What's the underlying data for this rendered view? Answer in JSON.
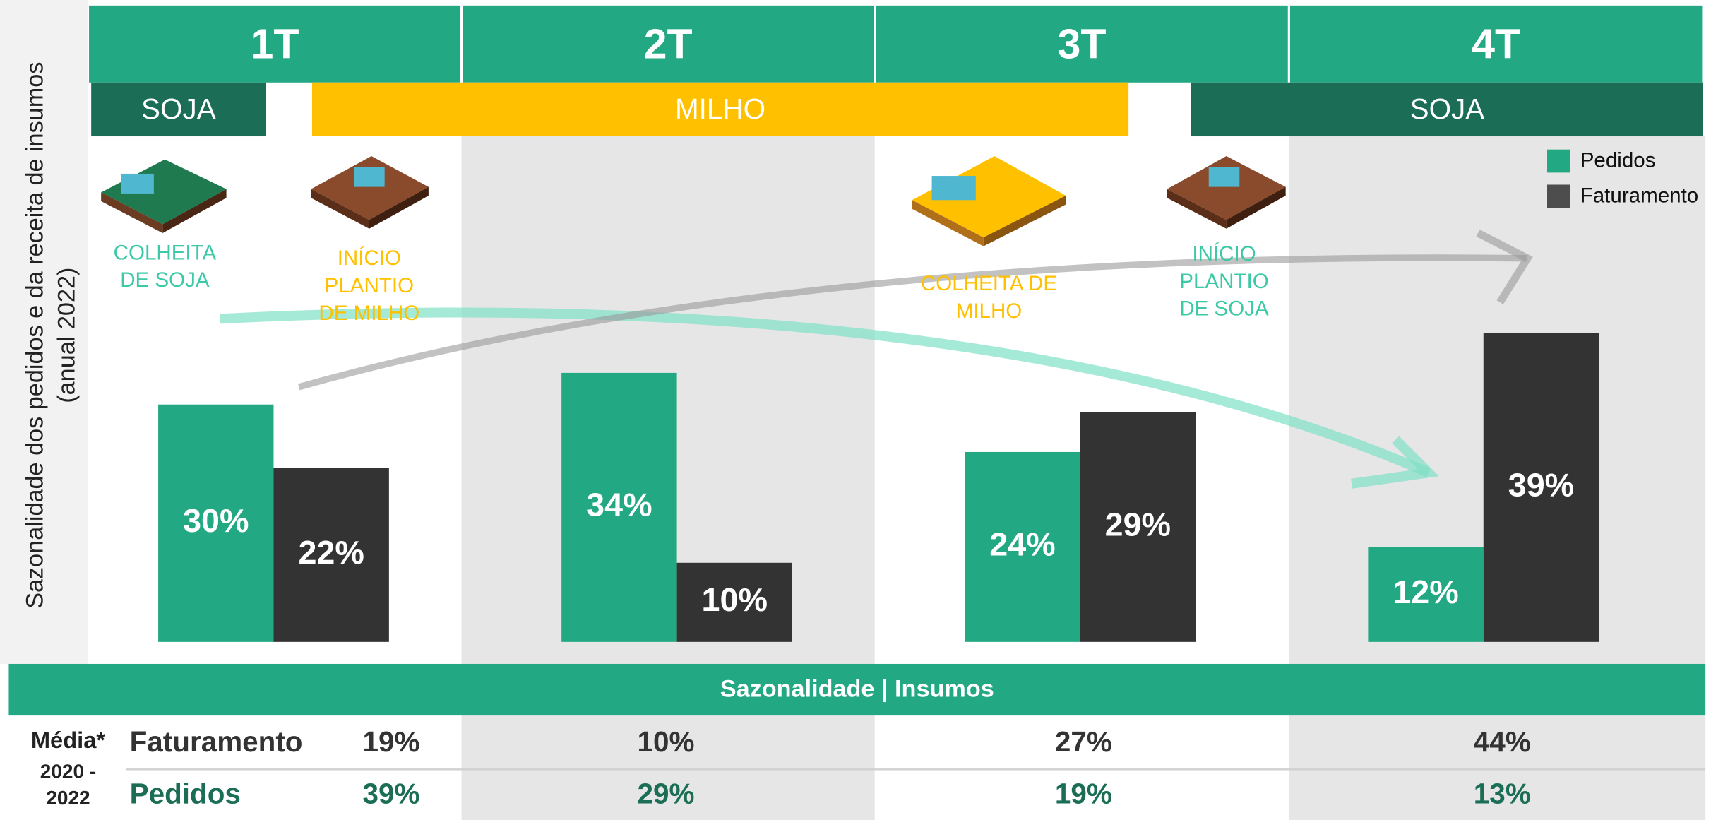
{
  "chart_data": {
    "type": "bar",
    "ylabel": "Sazonalidade dos pedidos e da receita de insumos",
    "ylabel_note": "(anual 2022)",
    "categories": [
      "1T",
      "2T",
      "3T",
      "4T"
    ],
    "series": [
      {
        "name": "Pedidos",
        "color": "#22a883",
        "values": [
          30,
          34,
          24,
          12
        ],
        "value_labels": [
          "30%",
          "34%",
          "24%",
          "12%"
        ]
      },
      {
        "name": "Faturamento",
        "color": "#333333",
        "values": [
          22,
          10,
          29,
          39
        ],
        "value_labels": [
          "22%",
          "10%",
          "29%",
          "39%"
        ]
      }
    ],
    "legend": "upper right"
  },
  "seasons": [
    {
      "label": "SOJA",
      "color": "#1b6e55"
    },
    {
      "label": "MILHO",
      "color": "#ffc000"
    },
    {
      "label": "SOJA",
      "color": "#1b6e55"
    }
  ],
  "annotations": [
    {
      "lines": [
        "COLHEITA",
        "DE SOJA"
      ],
      "color": "#3cc9a6"
    },
    {
      "lines": [
        "INÍCIO",
        "PLANTIO",
        "DE MILHO"
      ],
      "color": "#ffc000"
    },
    {
      "lines": [
        "COLHEITA DE",
        "MILHO"
      ],
      "color": "#ffc000"
    },
    {
      "lines": [
        "INÍCIO",
        "PLANTIO",
        "DE SOJA"
      ],
      "color": "#3cc9a6"
    }
  ],
  "table": {
    "title": "Sazonalidade | Insumos",
    "caption": [
      "Média*",
      "2020 -",
      "2022"
    ],
    "rows": [
      {
        "label": "Faturamento",
        "cells": [
          "19%",
          "10%",
          "27%",
          "44%"
        ]
      },
      {
        "label": "Pedidos",
        "cells": [
          "39%",
          "29%",
          "19%",
          "13%"
        ]
      }
    ]
  }
}
